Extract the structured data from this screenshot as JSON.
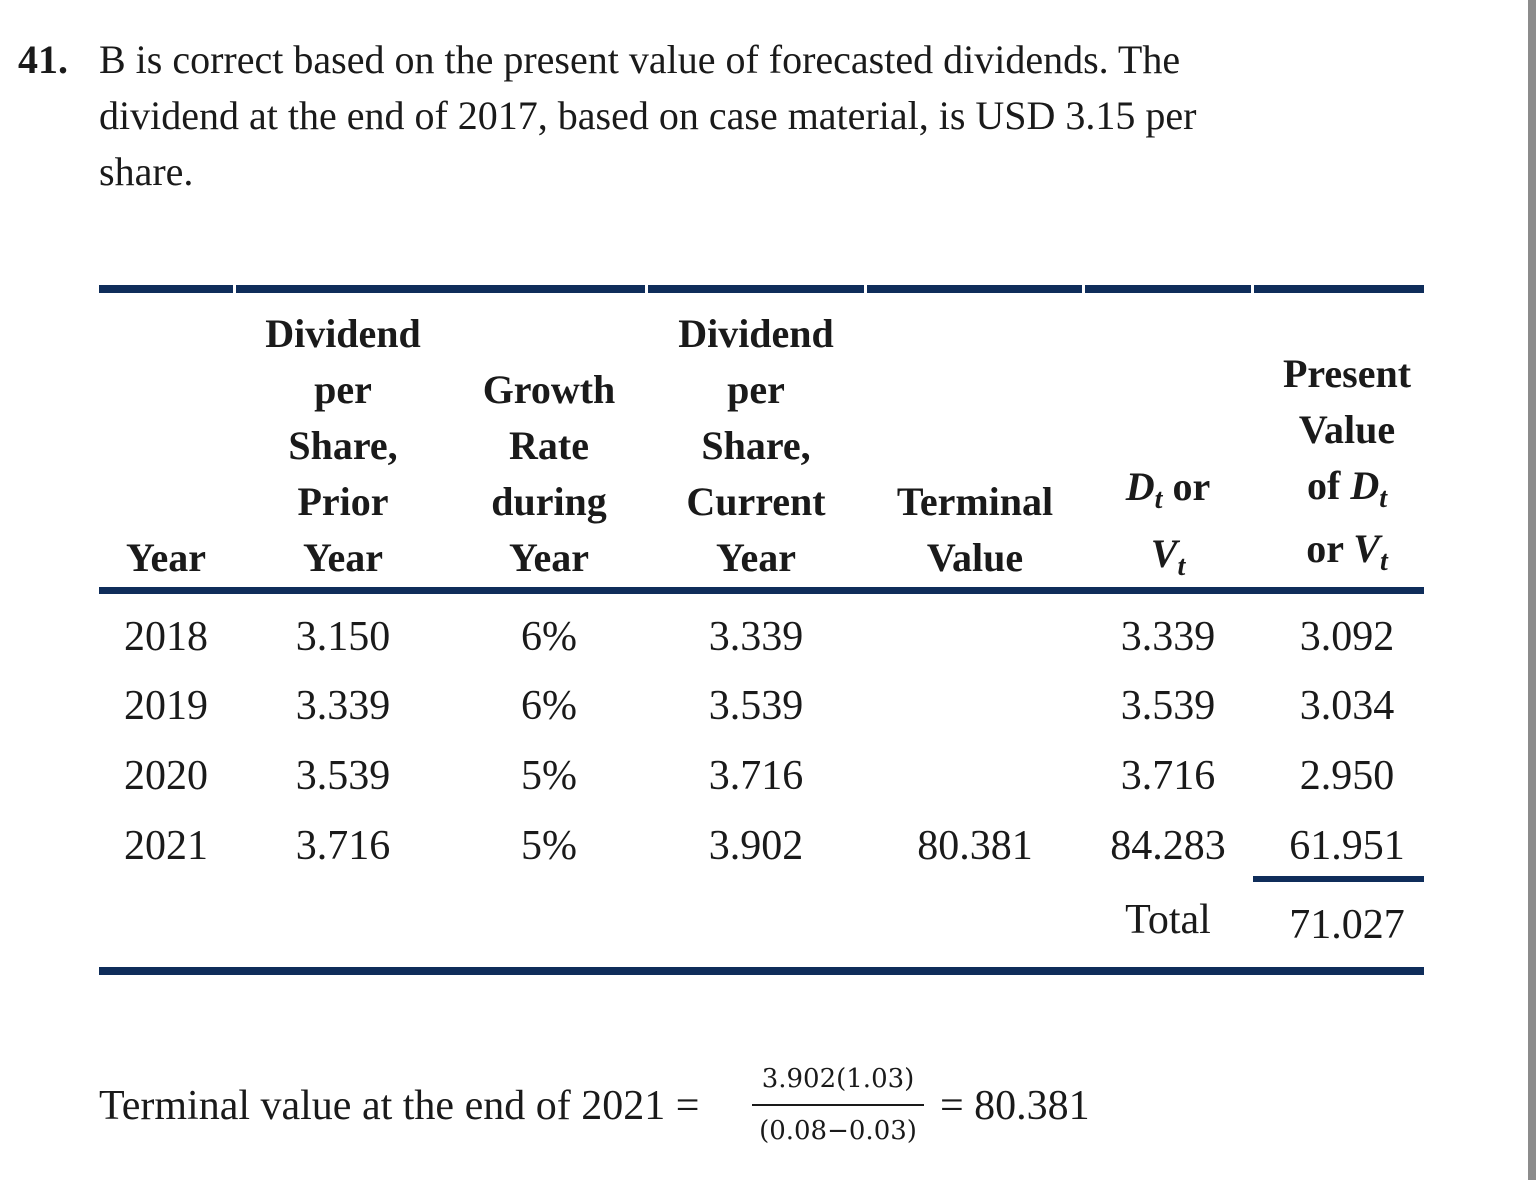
{
  "question": {
    "number": "41.",
    "lines": [
      "B is correct based on the present value of forecasted dividends. The",
      "dividend at the end of 2017, based on case material, is USD 3.15 per",
      "share."
    ]
  },
  "table": {
    "headers": {
      "year": [
        "Year"
      ],
      "dps_prior": [
        "Dividend",
        "per",
        "Share,",
        "Prior",
        "Year"
      ],
      "growth": [
        "Growth",
        "Rate",
        "during",
        "Year"
      ],
      "dps_current": [
        "Dividend",
        "per",
        "Share,",
        "Current",
        "Year"
      ],
      "terminal": [
        "Terminal",
        "Value"
      ],
      "dt_or_vt": {
        "d": "D",
        "sub1": "t",
        "or": " or",
        "v": "V",
        "sub2": "t"
      },
      "pv": {
        "line1": "Present",
        "line2": "Value",
        "line3_pre": "of ",
        "d": "D",
        "sub1": "t",
        "line4_pre": "or ",
        "v": "V",
        "sub2": "t"
      }
    },
    "rows": [
      {
        "year": "2018",
        "prior": "3.150",
        "growth": "6%",
        "current": "3.339",
        "terminal": "",
        "dv": "3.339",
        "pv": "3.092"
      },
      {
        "year": "2019",
        "prior": "3.339",
        "growth": "6%",
        "current": "3.539",
        "terminal": "",
        "dv": "3.539",
        "pv": "3.034"
      },
      {
        "year": "2020",
        "prior": "3.539",
        "growth": "5%",
        "current": "3.716",
        "terminal": "",
        "dv": "3.716",
        "pv": "2.950"
      },
      {
        "year": "2021",
        "prior": "3.716",
        "growth": "5%",
        "current": "3.902",
        "terminal": "80.381",
        "dv": "84.283",
        "pv": "61.951"
      }
    ],
    "total_label": "Total",
    "total_value": "71.027"
  },
  "equation": {
    "label": "Terminal value at the end of 2021 =",
    "numerator": "3.902(1.03)",
    "denominator": "(0.08−0.03)",
    "result": "= 80.381"
  },
  "colors": {
    "rule": "#0f2d5a",
    "text": "#1a1a1a"
  }
}
